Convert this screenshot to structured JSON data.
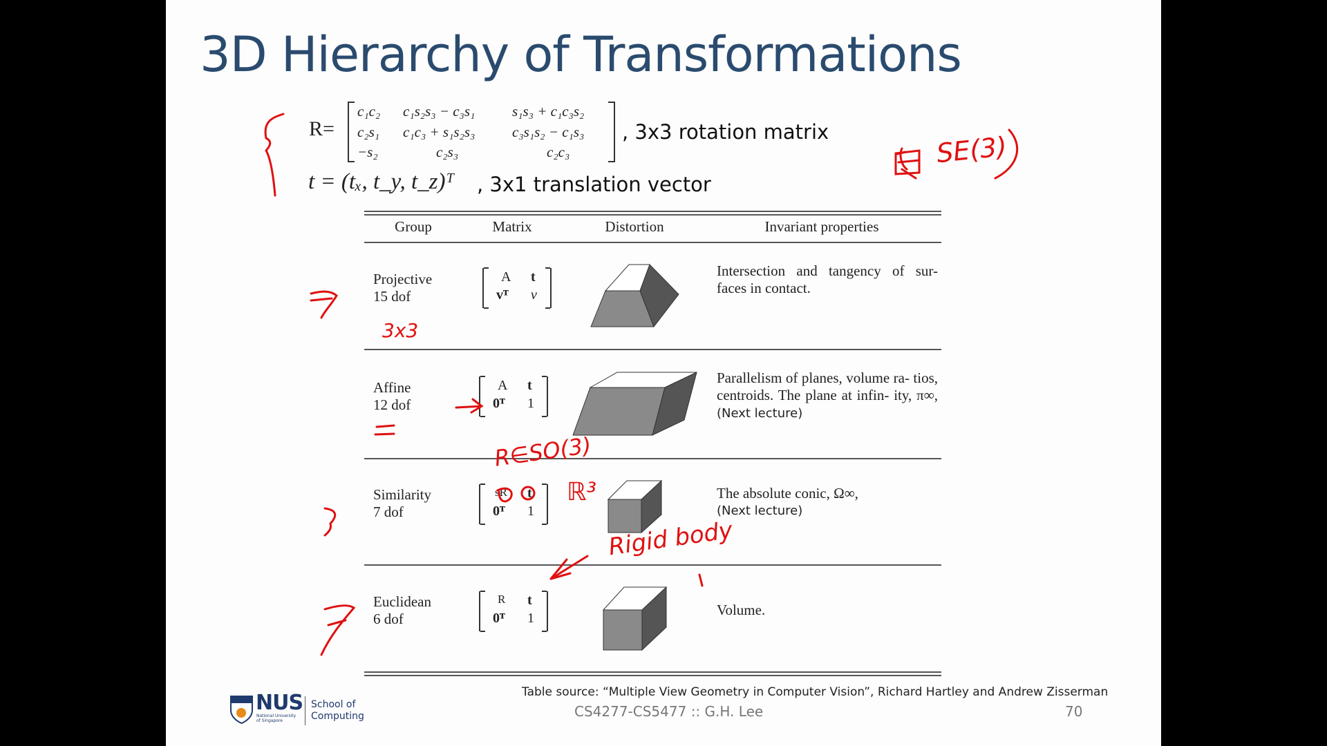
{
  "slide": {
    "title": "3D Hierarchy of Transformations",
    "rotation": {
      "lhs": "R=",
      "rows": [
        [
          "c₁c₂",
          "c₁s₂s₃ − c₃s₁",
          "s₁s₃ + c₁c₃s₂"
        ],
        [
          "c₂s₁",
          "c₁c₃ + s₁s₂s₃",
          "c₃s₁s₂ − c₁s₃"
        ],
        [
          "−s₂",
          "c₂s₃",
          "c₂c₃"
        ]
      ],
      "caption": ",   3x3 rotation matrix"
    },
    "translation": {
      "formula": "t = (tₓ, t_y, t_z)ᵀ",
      "caption": ",   3x1 translation vector"
    },
    "table": {
      "headers": [
        "Group",
        "Matrix",
        "Distortion",
        "Invariant properties"
      ],
      "rows": [
        {
          "group": "Projective",
          "dof": "15 dof",
          "m": [
            "A",
            "t",
            "vᵀ",
            "v"
          ],
          "props": "Intersection and tangency of sur- faces in contact.",
          "extra": ""
        },
        {
          "group": "Affine",
          "dof": "12 dof",
          "m": [
            "A",
            "t",
            "0ᵀ",
            "1"
          ],
          "props": "Parallelism of planes, volume ra- tios, centroids. The plane at infin- ity, π∞,",
          "extra": "(Next lecture)"
        },
        {
          "group": "Similarity",
          "dof": "7 dof",
          "m": [
            "sR",
            "t",
            "0ᵀ",
            "1"
          ],
          "props": "The absolute conic, Ω∞,",
          "extra": "(Next lecture)"
        },
        {
          "group": "Euclidean",
          "dof": "6 dof",
          "m": [
            "R",
            "t",
            "0ᵀ",
            "1"
          ],
          "props": "Volume.",
          "extra": ""
        }
      ]
    },
    "annotations": {
      "a1": "3x3",
      "a2": "R∈SO(3)",
      "a3": "ℝ³",
      "a4": "Rigid body",
      "a5": "SE(3)"
    },
    "footer": {
      "source": "Table source: “Multiple View Geometry in Computer Vision”, Richard Hartley and Andrew Zisserman",
      "course": "CS4277-CS5477 :: G.H. Lee",
      "page": "70",
      "logo_text": "NUS",
      "logo_sub": "National University of Singapore",
      "school": "School of Computing"
    },
    "colors": {
      "title": "#2a4b6e",
      "ink": "#e01010"
    }
  }
}
